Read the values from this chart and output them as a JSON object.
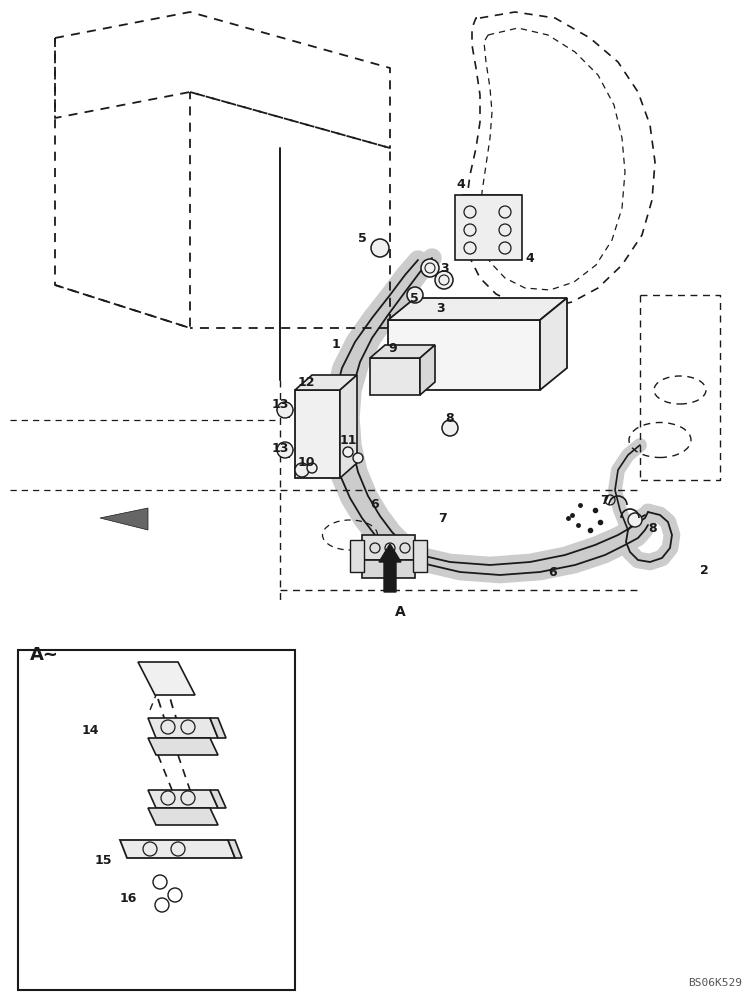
{
  "bg_color": "#ffffff",
  "line_color": "#1a1a1a",
  "fig_w": 7.56,
  "fig_h": 10.0,
  "dpi": 100,
  "watermark": "BS06K529",
  "xlim": [
    0,
    756
  ],
  "ylim": [
    0,
    1000
  ]
}
